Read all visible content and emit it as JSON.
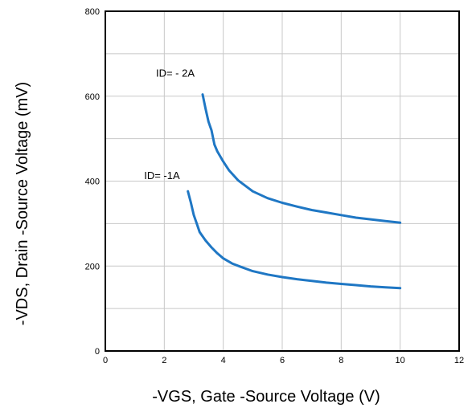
{
  "chart_data": {
    "type": "line",
    "title": "",
    "xlabel": "-VGS, Gate -Source Voltage (V)",
    "ylabel": "-VDS, Drain -Source Voltage (mV)",
    "xlim": [
      0,
      12
    ],
    "ylim": [
      0,
      800
    ],
    "x_ticks": [
      "0",
      "2",
      "4",
      "6",
      "8",
      "10",
      "12"
    ],
    "y_ticks": [
      "0",
      "200",
      "400",
      "600",
      "800"
    ],
    "grid": true,
    "line_color": "#1f77c4",
    "series": [
      {
        "name": "ID= - 2A",
        "x": [
          3.3,
          3.4,
          3.5,
          3.6,
          3.7,
          3.8,
          4.0,
          4.2,
          4.5,
          5.0,
          5.5,
          6.0,
          6.5,
          7.0,
          7.5,
          8.0,
          8.5,
          9.0,
          9.5,
          10.0
        ],
        "y": [
          604,
          570,
          540,
          520,
          486,
          470,
          446,
          425,
          402,
          376,
          360,
          349,
          340,
          332,
          326,
          320,
          314,
          310,
          306,
          302
        ]
      },
      {
        "name": "ID= -1A",
        "x": [
          2.8,
          2.9,
          3.0,
          3.1,
          3.2,
          3.4,
          3.6,
          3.8,
          4.0,
          4.3,
          4.6,
          5.0,
          5.5,
          6.0,
          6.5,
          7.0,
          7.5,
          8.0,
          8.5,
          9.0,
          9.5,
          10.0
        ],
        "y": [
          376,
          350,
          320,
          300,
          280,
          260,
          244,
          230,
          218,
          206,
          198,
          188,
          180,
          174,
          169,
          165,
          161,
          158,
          155,
          152,
          150,
          148
        ]
      }
    ]
  }
}
